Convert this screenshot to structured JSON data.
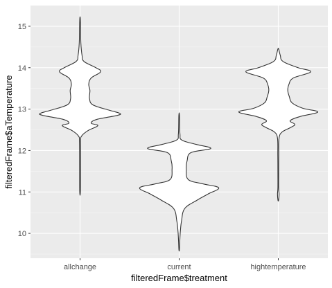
{
  "chart_data": {
    "type": "violin",
    "title": "",
    "xlabel": "filteredFrame$treatment",
    "ylabel": "filteredFrame$aTemperature",
    "categories": [
      "allchange",
      "current",
      "hightemperature"
    ],
    "ylim": [
      9.4,
      15.5
    ],
    "yticks": [
      10,
      11,
      12,
      13,
      14,
      15
    ],
    "grid": true,
    "colors": {
      "panel": "#ebebeb",
      "grid_major": "#ffffff",
      "grid_minor": "#f5f5f5",
      "violin_fill": "#ffffff",
      "violin_stroke": "#333333"
    },
    "series": [
      {
        "name": "allchange",
        "profile": [
          [
            11.0,
            0.008
          ],
          [
            11.6,
            0.01
          ],
          [
            12.2,
            0.015
          ],
          [
            12.35,
            0.04
          ],
          [
            12.48,
            0.2
          ],
          [
            12.6,
            0.45
          ],
          [
            12.66,
            0.28
          ],
          [
            12.75,
            0.42
          ],
          [
            12.85,
            0.95
          ],
          [
            12.9,
            1.0
          ],
          [
            12.97,
            0.75
          ],
          [
            13.1,
            0.33
          ],
          [
            13.25,
            0.24
          ],
          [
            13.45,
            0.25
          ],
          [
            13.6,
            0.22
          ],
          [
            13.75,
            0.28
          ],
          [
            13.9,
            0.52
          ],
          [
            14.0,
            0.4
          ],
          [
            14.15,
            0.1
          ],
          [
            14.3,
            0.05
          ],
          [
            14.6,
            0.02
          ],
          [
            15.0,
            0.012
          ],
          [
            15.2,
            0.005
          ]
        ]
      },
      {
        "name": "current",
        "profile": [
          [
            9.6,
            0.006
          ],
          [
            9.8,
            0.015
          ],
          [
            10.05,
            0.03
          ],
          [
            10.3,
            0.06
          ],
          [
            10.6,
            0.14
          ],
          [
            10.8,
            0.45
          ],
          [
            10.95,
            0.73
          ],
          [
            11.1,
            1.0
          ],
          [
            11.2,
            0.58
          ],
          [
            11.3,
            0.23
          ],
          [
            11.55,
            0.18
          ],
          [
            11.75,
            0.2
          ],
          [
            11.95,
            0.3
          ],
          [
            12.05,
            0.8
          ],
          [
            12.15,
            0.42
          ],
          [
            12.25,
            0.07
          ],
          [
            12.4,
            0.02
          ],
          [
            12.85,
            0.008
          ]
        ]
      },
      {
        "name": "hightemperature",
        "profile": [
          [
            10.8,
            0.008
          ],
          [
            10.95,
            0.02
          ],
          [
            11.1,
            0.01
          ],
          [
            11.5,
            0.01
          ],
          [
            11.9,
            0.012
          ],
          [
            12.3,
            0.02
          ],
          [
            12.45,
            0.1
          ],
          [
            12.55,
            0.3
          ],
          [
            12.63,
            0.42
          ],
          [
            12.72,
            0.3
          ],
          [
            12.82,
            0.55
          ],
          [
            12.93,
            1.0
          ],
          [
            13.02,
            0.62
          ],
          [
            13.15,
            0.35
          ],
          [
            13.3,
            0.28
          ],
          [
            13.45,
            0.24
          ],
          [
            13.6,
            0.27
          ],
          [
            13.75,
            0.38
          ],
          [
            13.9,
            0.82
          ],
          [
            14.0,
            0.5
          ],
          [
            14.15,
            0.12
          ],
          [
            14.3,
            0.05
          ],
          [
            14.45,
            0.01
          ]
        ]
      }
    ]
  }
}
